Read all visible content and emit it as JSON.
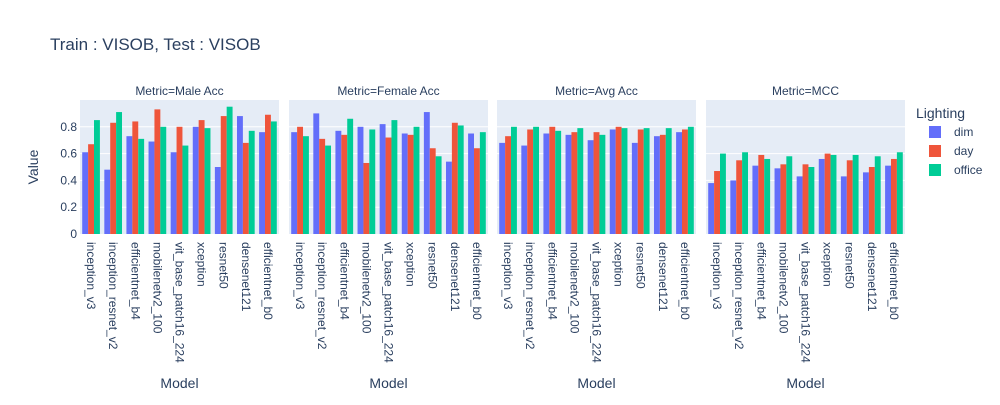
{
  "title": "Train : VISOB, Test : VISOB",
  "ylabel": "Value",
  "legend_title": "Lighting",
  "colors": {
    "dim": "#636efa",
    "day": "#ef553b",
    "office": "#00cc96",
    "plot_bg": "#e5ecf6",
    "grid": "#ffffff",
    "text": "#2a3f5f"
  },
  "chart_data": [
    {
      "type": "bar",
      "title": "Metric=Male Acc",
      "xlabel": "Model",
      "ylabel": "Value",
      "categories": [
        "inception_v3",
        "inception_resnet_v2",
        "efficientnet_b4",
        "mobilenetv2_100",
        "vit_base_patch16_224",
        "xception",
        "resnet50",
        "densenet121",
        "efficientnet_b0"
      ],
      "ylim": [
        0,
        1.0
      ],
      "yticks": [
        "0",
        "0.2",
        "0.4",
        "0.6",
        "0.8"
      ],
      "grid": true,
      "legend_position": "right",
      "series": [
        {
          "name": "dim",
          "values": [
            0.61,
            0.48,
            0.73,
            0.69,
            0.61,
            0.8,
            0.5,
            0.88,
            0.76
          ]
        },
        {
          "name": "day",
          "values": [
            0.67,
            0.83,
            0.84,
            0.93,
            0.8,
            0.85,
            0.88,
            0.68,
            0.89
          ]
        },
        {
          "name": "office",
          "values": [
            0.85,
            0.91,
            0.71,
            0.8,
            0.66,
            0.79,
            0.95,
            0.77,
            0.84
          ]
        }
      ]
    },
    {
      "type": "bar",
      "title": "Metric=Female Acc",
      "xlabel": "Model",
      "categories": [
        "inception_v3",
        "inception_resnet_v2",
        "efficientnet_b4",
        "mobilenetv2_100",
        "vit_base_patch16_224",
        "xception",
        "resnet50",
        "densenet121",
        "efficientnet_b0"
      ],
      "ylim": [
        0,
        1.0
      ],
      "grid": true,
      "series": [
        {
          "name": "dim",
          "values": [
            0.76,
            0.9,
            0.77,
            0.8,
            0.82,
            0.75,
            0.91,
            0.54,
            0.75
          ]
        },
        {
          "name": "day",
          "values": [
            0.8,
            0.71,
            0.74,
            0.53,
            0.72,
            0.74,
            0.64,
            0.83,
            0.64
          ]
        },
        {
          "name": "office",
          "values": [
            0.73,
            0.66,
            0.86,
            0.78,
            0.85,
            0.8,
            0.58,
            0.81,
            0.76
          ]
        }
      ]
    },
    {
      "type": "bar",
      "title": "Metric=Avg Acc",
      "xlabel": "Model",
      "categories": [
        "inception_v3",
        "inception_resnet_v2",
        "efficientnet_b4",
        "mobilenetv2_100",
        "vit_base_patch16_224",
        "xception",
        "resnet50",
        "densenet121",
        "efficientnet_b0"
      ],
      "ylim": [
        0,
        1.0
      ],
      "grid": true,
      "series": [
        {
          "name": "dim",
          "values": [
            0.68,
            0.66,
            0.75,
            0.74,
            0.7,
            0.78,
            0.68,
            0.73,
            0.76
          ]
        },
        {
          "name": "day",
          "values": [
            0.73,
            0.78,
            0.8,
            0.76,
            0.76,
            0.8,
            0.78,
            0.74,
            0.78
          ]
        },
        {
          "name": "office",
          "values": [
            0.8,
            0.8,
            0.77,
            0.79,
            0.74,
            0.79,
            0.79,
            0.79,
            0.8
          ]
        }
      ]
    },
    {
      "type": "bar",
      "title": "Metric=MCC",
      "xlabel": "Model",
      "categories": [
        "inception_v3",
        "inception_resnet_v2",
        "efficientnet_b4",
        "mobilenetv2_100",
        "vit_base_patch16_224",
        "xception",
        "resnet50",
        "densenet121",
        "efficientnet_b0"
      ],
      "ylim": [
        0,
        1.0
      ],
      "grid": true,
      "series": [
        {
          "name": "dim",
          "values": [
            0.38,
            0.4,
            0.51,
            0.49,
            0.43,
            0.56,
            0.43,
            0.46,
            0.51
          ]
        },
        {
          "name": "day",
          "values": [
            0.47,
            0.55,
            0.59,
            0.52,
            0.52,
            0.6,
            0.55,
            0.5,
            0.56
          ]
        },
        {
          "name": "office",
          "values": [
            0.6,
            0.61,
            0.56,
            0.58,
            0.5,
            0.59,
            0.59,
            0.58,
            0.61
          ]
        }
      ]
    }
  ]
}
